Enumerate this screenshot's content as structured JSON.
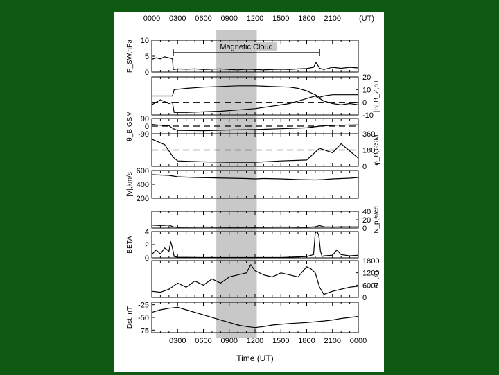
{
  "colors": {
    "background": "#0f5a12",
    "figure": "#ffffff",
    "ink": "#000000",
    "shade": "#c8c8c8"
  },
  "chart_data": {
    "type": "line",
    "title": "",
    "time_axis": {
      "top_tick_labels": [
        "0000",
        "0300",
        "0600",
        "0900",
        "1200",
        "1500",
        "1800",
        "2100",
        "(UT)"
      ],
      "bottom_tick_labels": [
        "0300",
        "0600",
        "0900",
        "1200",
        "1500",
        "1800",
        "2100",
        "0000"
      ],
      "xlabel": "Time (UT)",
      "range_hours": [
        0,
        24
      ]
    },
    "shaded_interval_hours": [
      7.5,
      12.2
    ],
    "annotation": {
      "label": "Magnetic Cloud",
      "start_hour": 2.5,
      "end_hour": 19.5
    },
    "panels": [
      {
        "id": "psw",
        "ylabel": "P_SW,nPa",
        "side": "left",
        "yticks": [
          "10",
          "5",
          "0"
        ],
        "ylim": [
          0,
          10
        ],
        "series": [
          {
            "x": [
              0,
              0.5,
              1,
              1.5,
              2,
              2.4,
              2.5,
              3,
              4,
              5,
              6,
              7,
              8,
              9,
              10,
              11,
              12,
              13,
              14,
              15,
              16,
              17,
              18,
              18.8,
              19.1,
              19.5,
              20,
              21,
              22,
              23,
              24
            ],
            "y": [
              4,
              4.5,
              4.2,
              4.8,
              4.5,
              4.2,
              0.8,
              1,
              0.9,
              1,
              0.8,
              0.9,
              1,
              0.8,
              0.7,
              0.9,
              0.8,
              0.7,
              0.8,
              0.9,
              0.8,
              1,
              1.1,
              1.5,
              3,
              1.2,
              0.8,
              1.5,
              1.2,
              1.5,
              1.3
            ]
          }
        ]
      },
      {
        "id": "b",
        "ylabel": "|B|,B_Z,nT",
        "side": "right",
        "yticks": [
          "20",
          "10",
          "0",
          "-10"
        ],
        "ylim": [
          -10,
          20
        ],
        "dashed_zero": true,
        "series": [
          {
            "name": "|B|",
            "x": [
              0,
              1,
              2,
              2.4,
              2.6,
              4,
              6,
              8,
              10,
              12,
              14,
              16,
              17,
              18,
              19,
              19.5,
              20,
              21,
              22,
              23,
              24
            ],
            "y": [
              5,
              5,
              5,
              5,
              10,
              11,
              12,
              12.5,
              13,
              13,
              12.5,
              12,
              11,
              9,
              6,
              4,
              5,
              6,
              6,
              6,
              6
            ]
          },
          {
            "name": "Bz",
            "x": [
              0,
              1,
              2,
              2.4,
              2.6,
              4,
              6,
              8,
              10,
              12,
              14,
              16,
              17,
              18,
              19,
              19.5,
              20,
              21,
              22,
              23,
              24
            ],
            "y": [
              -2,
              2,
              -1,
              0,
              -8,
              -8,
              -7.5,
              -7,
              -6,
              -5,
              -3,
              -1,
              1,
              3,
              5,
              3,
              1,
              -1,
              -2,
              -1,
              -2
            ]
          }
        ]
      },
      {
        "id": "theta",
        "ylabel": "θ_B,GSM",
        "side": "left",
        "yticks": [
          "90",
          "0",
          "-90"
        ],
        "ylim": [
          -90,
          90
        ],
        "dashed_zero": true,
        "series": [
          {
            "x": [
              0,
              1,
              2,
              2.5,
              3,
              6,
              9,
              12,
              15,
              18,
              19.5,
              21,
              24
            ],
            "y": [
              20,
              10,
              5,
              -30,
              -50,
              -55,
              -45,
              -40,
              -30,
              -20,
              0,
              10,
              15
            ]
          }
        ]
      },
      {
        "id": "phi",
        "ylabel": "φ_B,GSM",
        "side": "right",
        "yticks": [
          "360",
          "180",
          "0"
        ],
        "ylim": [
          0,
          360
        ],
        "dashed_value": 180,
        "series": [
          {
            "x": [
              0,
              1.5,
              2.5,
              3,
              6,
              9,
              12,
              15,
              18,
              19.5,
              21,
              22,
              24
            ],
            "y": [
              300,
              240,
              100,
              60,
              50,
              45,
              45,
              60,
              70,
              200,
              150,
              250,
              90
            ]
          }
        ]
      },
      {
        "id": "v",
        "ylabel": "|V|,km/s",
        "side": "left",
        "yticks": [
          "600",
          "400",
          "200"
        ],
        "ylim": [
          200,
          600
        ],
        "series": [
          {
            "x": [
              0,
              2,
              3,
              5,
              7,
              9,
              11,
              12,
              13,
              15,
              17,
              19,
              20,
              21,
              23,
              24
            ],
            "y": [
              540,
              530,
              510,
              500,
              495,
              490,
              485,
              480,
              485,
              480,
              470,
              465,
              470,
              480,
              490,
              500
            ]
          }
        ]
      },
      {
        "id": "np",
        "ylabel": "N_p,#/cc",
        "side": "right",
        "yticks": [
          "40",
          "20",
          "0"
        ],
        "ylim": [
          0,
          40
        ],
        "series": [
          {
            "x": [
              0,
              1,
              2,
              2.5,
              3,
              6,
              9,
              12,
              15,
              18,
              19,
              19.5,
              20,
              21,
              22,
              24
            ],
            "y": [
              7,
              6,
              7,
              3,
              2,
              2.5,
              2,
              2,
              2.5,
              2,
              3,
              6,
              3,
              2.5,
              3,
              3
            ]
          }
        ]
      },
      {
        "id": "beta",
        "ylabel": "BETA",
        "side": "left",
        "yticks": [
          "4",
          "2",
          "0"
        ],
        "ylim": [
          0,
          4
        ],
        "series": [
          {
            "x": [
              0,
              0.5,
              1,
              1.5,
              2,
              2.2,
              2.4,
              2.6,
              3,
              6,
              9,
              12,
              15,
              18,
              18.8,
              19.0,
              19.2,
              19.4,
              19.6,
              19.8,
              20,
              21,
              21.5,
              22,
              23,
              24
            ],
            "y": [
              0.5,
              1.2,
              0.6,
              1.5,
              1.0,
              2.5,
              1.5,
              0.2,
              0.1,
              0.05,
              0.05,
              0.05,
              0.05,
              0.2,
              0.5,
              3.8,
              4,
              3.5,
              1,
              0.2,
              0.3,
              0.4,
              1.2,
              0.5,
              0.3,
              0.4
            ]
          }
        ]
      },
      {
        "id": "ae",
        "ylabel": "AE,nT",
        "side": "right",
        "yticks": [
          "1800",
          "1200",
          "600",
          "0"
        ],
        "ylim": [
          0,
          1800
        ],
        "series": [
          {
            "x": [
              0,
              1,
              2,
              3,
              4,
              5,
              6,
              7,
              8,
              9,
              10,
              11,
              11.5,
              12,
              13,
              14,
              15,
              16,
              17,
              18,
              18.5,
              19,
              19.5,
              20,
              21,
              22,
              23,
              24
            ],
            "y": [
              300,
              250,
              400,
              700,
              500,
              800,
              600,
              900,
              700,
              1000,
              1100,
              1200,
              1600,
              1300,
              1100,
              1000,
              1200,
              1100,
              1000,
              1500,
              1400,
              1200,
              500,
              150,
              300,
              400,
              500,
              550
            ]
          }
        ]
      },
      {
        "id": "dst",
        "ylabel": "Dst, nT",
        "side": "left",
        "yticks": [
          "-25",
          "-50",
          "-75"
        ],
        "ylim": [
          -80,
          -20
        ],
        "series": [
          {
            "x": [
              0,
              1,
              2,
              3,
              4,
              6,
              8,
              9,
              10,
              11,
              12,
              13,
              14,
              16,
              18,
              20,
              21,
              22,
              23,
              24
            ],
            "y": [
              -40,
              -35,
              -32,
              -30,
              -35,
              -45,
              -55,
              -60,
              -65,
              -68,
              -70,
              -68,
              -65,
              -62,
              -60,
              -57,
              -55,
              -52,
              -50,
              -48
            ]
          }
        ]
      }
    ]
  }
}
